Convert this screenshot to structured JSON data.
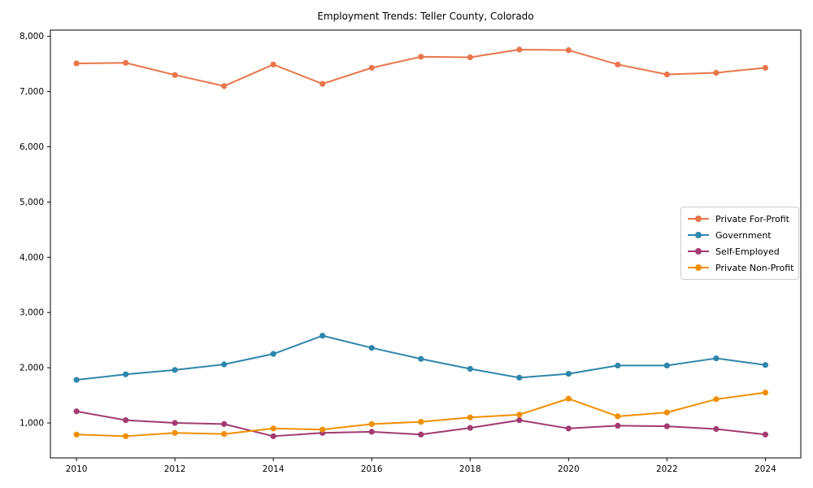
{
  "figure": {
    "title": "Employment Trends: Teller County, Colorado"
  },
  "chart_data": {
    "type": "line",
    "title": "Employment Trends: Teller County, Colorado",
    "x": [
      2010,
      2011,
      2012,
      2013,
      2014,
      2015,
      2016,
      2017,
      2018,
      2019,
      2020,
      2021,
      2022,
      2023,
      2024
    ],
    "series": [
      {
        "name": "Private For-Profit",
        "color": "#E8764B",
        "values": [
          7510,
          7520,
          7300,
          7100,
          7490,
          7140,
          7430,
          7630,
          7620,
          7760,
          7750,
          7490,
          7310,
          7340,
          7430
        ]
      },
      {
        "name": "Government",
        "color": "#2E86AB",
        "values": [
          1780,
          1880,
          1960,
          2060,
          2250,
          2580,
          2360,
          2160,
          1980,
          1820,
          1890,
          2040,
          2040,
          2170,
          2050
        ]
      },
      {
        "name": "Self-Employed",
        "color": "#A23B72",
        "values": [
          1210,
          1050,
          1000,
          980,
          760,
          820,
          840,
          790,
          910,
          1050,
          900,
          950,
          940,
          890,
          790
        ]
      },
      {
        "name": "Private Non-Profit",
        "color": "#F18F01",
        "values": [
          790,
          760,
          820,
          800,
          900,
          880,
          980,
          1020,
          1100,
          1150,
          1440,
          1120,
          1190,
          1430,
          1550
        ]
      }
    ],
    "x_ticks": {
      "values": [
        2010,
        2012,
        2014,
        2016,
        2018,
        2020,
        2022,
        2024
      ],
      "labels": [
        "2010",
        "2012",
        "2014",
        "2016",
        "2018",
        "2020",
        "2022",
        "2024"
      ]
    },
    "y_ticks": {
      "values": [
        1000,
        2000,
        3000,
        4000,
        5000,
        6000,
        7000,
        8000
      ],
      "labels": [
        "1,000",
        "2,000",
        "3,000",
        "4,000",
        "5,000",
        "6,000",
        "7,000",
        "8,000"
      ]
    },
    "xlim": [
      2009.47,
      2024.72
    ],
    "ylim": [
      367,
      8113
    ],
    "grid": false,
    "legend_position": "center right",
    "marker": "circle",
    "line_width": 2,
    "marker_radius": 3.6
  }
}
